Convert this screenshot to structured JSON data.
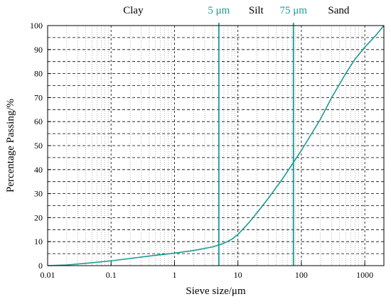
{
  "colors": {
    "series": "#1a9b93",
    "boundary": "#1a9b93",
    "axis": "#000000",
    "major_grid": "#000000",
    "minor_grid": "#888888",
    "text": "#000000"
  },
  "chart_data": {
    "type": "line",
    "title": "",
    "xlabel": "Sieve size/μm",
    "ylabel": "Percentage Passing/%",
    "xscale": "log",
    "xlim": [
      0.01,
      2000
    ],
    "ylim": [
      0,
      100
    ],
    "grid": true,
    "x_ticks": [
      0.01,
      0.1,
      1,
      10,
      100,
      1000
    ],
    "x_tick_labels": [
      "0.01",
      "0.1",
      "1",
      "10",
      "100",
      "1000"
    ],
    "y_ticks": [
      0,
      10,
      20,
      30,
      40,
      50,
      60,
      70,
      80,
      90,
      100
    ],
    "y_tick_labels": [
      "0",
      "10",
      "20",
      "30",
      "40",
      "50",
      "60",
      "70",
      "80",
      "90",
      "100"
    ],
    "regions": [
      "Clay",
      "Silt",
      "Sand"
    ],
    "boundaries": [
      {
        "x": 5,
        "label": "5 μm"
      },
      {
        "x": 75,
        "label": "75 μm"
      }
    ],
    "series": [
      {
        "x": [
          0.01,
          0.02,
          0.05,
          0.1,
          0.2,
          0.5,
          1,
          2,
          4,
          6,
          8,
          10,
          15,
          20,
          30,
          50,
          75,
          100,
          200,
          300,
          500,
          700,
          1000,
          1500,
          2000
        ],
        "y": [
          0,
          0.3,
          1.2,
          2,
          3,
          4.3,
          5.2,
          6.3,
          7.8,
          9.3,
          11,
          13,
          18,
          22,
          28,
          36,
          43,
          48,
          61,
          70,
          80,
          86,
          91,
          96,
          100
        ]
      }
    ]
  }
}
